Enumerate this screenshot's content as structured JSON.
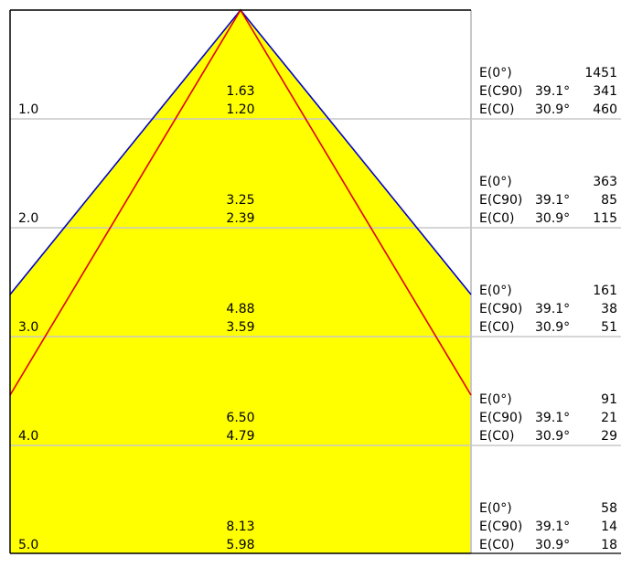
{
  "diagram": {
    "rows": [
      {
        "distance": "1.0",
        "d1": "1.63",
        "d2": "1.20",
        "e0_label": "E(0°)",
        "e0_value": "1451",
        "e90_label": "E(C90)",
        "e90_angle": "39.1°",
        "e90_value": "341",
        "ec0_label": "E(C0)",
        "ec0_angle": "30.9°",
        "ec0_value": "460"
      },
      {
        "distance": "2.0",
        "d1": "3.25",
        "d2": "2.39",
        "e0_label": "E(0°)",
        "e0_value": "363",
        "e90_label": "E(C90)",
        "e90_angle": "39.1°",
        "e90_value": "85",
        "ec0_label": "E(C0)",
        "ec0_angle": "30.9°",
        "ec0_value": "115"
      },
      {
        "distance": "3.0",
        "d1": "4.88",
        "d2": "3.59",
        "e0_label": "E(0°)",
        "e0_value": "161",
        "e90_label": "E(C90)",
        "e90_angle": "39.1°",
        "e90_value": "38",
        "ec0_label": "E(C0)",
        "ec0_angle": "30.9°",
        "ec0_value": "51"
      },
      {
        "distance": "4.0",
        "d1": "6.50",
        "d2": "4.79",
        "e0_label": "E(0°)",
        "e0_value": "91",
        "e90_label": "E(C90)",
        "e90_angle": "39.1°",
        "e90_value": "21",
        "ec0_label": "E(C0)",
        "ec0_angle": "30.9°",
        "ec0_value": "29"
      },
      {
        "distance": "5.0",
        "d1": "8.13",
        "d2": "5.98",
        "e0_label": "E(0°)",
        "e0_value": "58",
        "e90_label": "E(C90)",
        "e90_angle": "39.1°",
        "e90_value": "14",
        "ec0_label": "E(C0)",
        "ec0_angle": "30.9°",
        "ec0_value": "18"
      }
    ],
    "colors": {
      "cone_fill": "#ffff00",
      "c90_line": "#0000cc",
      "c0_line": "#e00000",
      "grid_line": "#c8c8c8",
      "border": "#000000"
    }
  }
}
